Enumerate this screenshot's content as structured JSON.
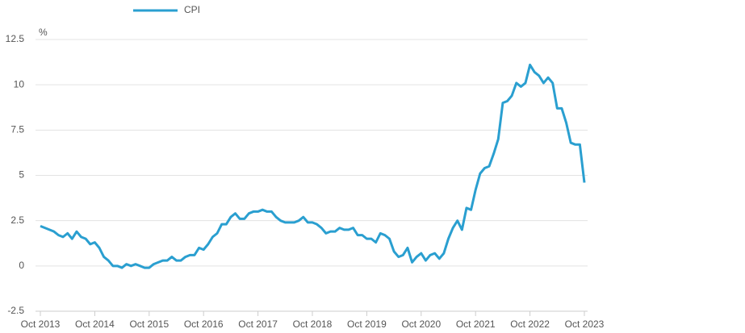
{
  "chart_data": {
    "type": "line",
    "y_unit": "%",
    "categories": [
      "Oct 2013",
      null,
      null,
      null,
      null,
      null,
      null,
      null,
      null,
      null,
      null,
      null,
      "Oct 2014",
      null,
      null,
      null,
      null,
      null,
      null,
      null,
      null,
      null,
      null,
      null,
      "Oct 2015",
      null,
      null,
      null,
      null,
      null,
      null,
      null,
      null,
      null,
      null,
      null,
      "Oct 2016",
      null,
      null,
      null,
      null,
      null,
      null,
      null,
      null,
      null,
      null,
      null,
      "Oct 2017",
      null,
      null,
      null,
      null,
      null,
      null,
      null,
      null,
      null,
      null,
      null,
      "Oct 2018",
      null,
      null,
      null,
      null,
      null,
      null,
      null,
      null,
      null,
      null,
      null,
      "Oct 2019",
      null,
      null,
      null,
      null,
      null,
      null,
      null,
      null,
      null,
      null,
      null,
      "Oct 2020",
      null,
      null,
      null,
      null,
      null,
      null,
      null,
      null,
      null,
      null,
      null,
      "Oct 2021",
      null,
      null,
      null,
      null,
      null,
      null,
      null,
      null,
      null,
      null,
      null,
      "Oct 2022",
      null,
      null,
      null,
      null,
      null,
      null,
      null,
      null,
      null,
      null,
      null,
      "Oct 2023"
    ],
    "series": [
      {
        "name": "CPI",
        "color": "#2a9fd0",
        "values": [
          2.2,
          2.1,
          2.0,
          1.9,
          1.7,
          1.6,
          1.8,
          1.5,
          1.9,
          1.6,
          1.5,
          1.2,
          1.3,
          1.0,
          0.5,
          0.3,
          0.0,
          0.0,
          -0.1,
          0.1,
          0.0,
          0.1,
          0.0,
          -0.1,
          -0.1,
          0.1,
          0.2,
          0.3,
          0.3,
          0.5,
          0.3,
          0.3,
          0.5,
          0.6,
          0.6,
          1.0,
          0.9,
          1.2,
          1.6,
          1.8,
          2.3,
          2.3,
          2.7,
          2.9,
          2.6,
          2.6,
          2.9,
          3.0,
          3.0,
          3.1,
          3.0,
          3.0,
          2.7,
          2.5,
          2.4,
          2.4,
          2.4,
          2.5,
          2.7,
          2.4,
          2.4,
          2.3,
          2.1,
          1.8,
          1.9,
          1.9,
          2.1,
          2.0,
          2.0,
          2.1,
          1.7,
          1.7,
          1.5,
          1.5,
          1.3,
          1.8,
          1.7,
          1.5,
          0.8,
          0.5,
          0.6,
          1.0,
          0.2,
          0.5,
          0.7,
          0.3,
          0.6,
          0.7,
          0.4,
          0.7,
          1.5,
          2.1,
          2.5,
          2.0,
          3.2,
          3.1,
          4.2,
          5.1,
          5.4,
          5.5,
          6.2,
          7.0,
          9.0,
          9.1,
          9.4,
          10.1,
          9.9,
          10.1,
          11.1,
          10.7,
          10.5,
          10.1,
          10.4,
          10.1,
          8.7,
          8.7,
          7.9,
          6.8,
          6.7,
          6.7,
          4.6
        ]
      }
    ],
    "ylim": [
      -2.5,
      12.5
    ],
    "yticks": [
      -2.5,
      0,
      2.5,
      5,
      7.5,
      10,
      12.5
    ],
    "grid": true
  }
}
